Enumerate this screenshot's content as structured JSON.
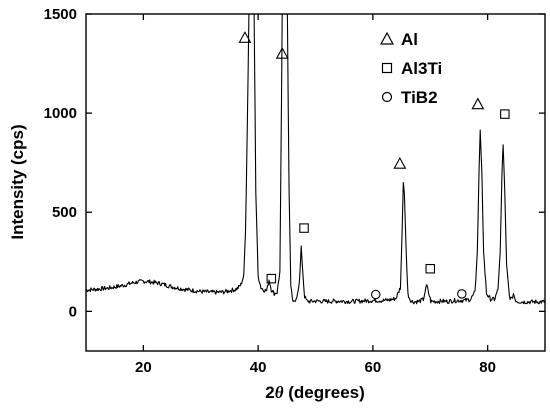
{
  "chart_data": {
    "type": "line",
    "xlabel_number": "2",
    "xlabel_symbol": "θ",
    "xlabel_rest": " (degrees)",
    "ylabel": "Intensity (cps)",
    "xlim": [
      10,
      90
    ],
    "ylim": [
      -200,
      1500
    ],
    "x_ticks": [
      20,
      40,
      60,
      80
    ],
    "y_ticks": [
      0,
      500,
      1000,
      1500
    ],
    "grid": false,
    "legend_position": "top-right",
    "legend": [
      {
        "marker": "triangle",
        "label": "Al"
      },
      {
        "marker": "square",
        "label": "Al3Ti"
      },
      {
        "marker": "circle",
        "label": "TiB2"
      }
    ],
    "series": [
      {
        "x": [
          10,
          12,
          14,
          16,
          17,
          18,
          19,
          20,
          21,
          22,
          23,
          24,
          25,
          26,
          27,
          28,
          29,
          30,
          31,
          32,
          33,
          34,
          35,
          36,
          36.5,
          37,
          37.5,
          37.8,
          38.1,
          38.4,
          38.6,
          39.0,
          39.3,
          39.6,
          40.0,
          40.5,
          41.0,
          41.5,
          41.9,
          42.3,
          42.8,
          43.3,
          43.8,
          44.2,
          44.5,
          44.8,
          45.1,
          45.4,
          45.7,
          46.1,
          46.5,
          46.9,
          47.2,
          47.5,
          47.8,
          48.1,
          48.5,
          49.0,
          50,
          52,
          54,
          56,
          58,
          60,
          62,
          63,
          64,
          64.8,
          65.1,
          65.3,
          65.5,
          65.8,
          66.1,
          66.5,
          67,
          68,
          68.8,
          69.1,
          69.4,
          69.7,
          70.1,
          71,
          72,
          73,
          74,
          75,
          76,
          77,
          77.8,
          78.2,
          78.5,
          78.7,
          79.0,
          79.3,
          79.8,
          80.5,
          81.2,
          81.8,
          82.2,
          82.5,
          82.7,
          83.0,
          83.3,
          83.8,
          84.2,
          84.5,
          84.8,
          85.2,
          86,
          87,
          88,
          89,
          90
        ],
        "y": [
          108,
          112,
          118,
          128,
          135,
          143,
          148,
          152,
          150,
          145,
          140,
          132,
          124,
          118,
          112,
          108,
          104,
          100,
          98,
          96,
          96,
          98,
          104,
          110,
          118,
          135,
          180,
          400,
          900,
          1500,
          1500,
          1500,
          1500,
          600,
          180,
          120,
          108,
          104,
          160,
          110,
          90,
          96,
          200,
          1500,
          1500,
          1500,
          1500,
          600,
          120,
          40,
          60,
          90,
          140,
          330,
          190,
          75,
          52,
          50,
          52,
          50,
          52,
          50,
          52,
          55,
          55,
          58,
          65,
          120,
          400,
          650,
          590,
          300,
          90,
          58,
          48,
          50,
          60,
          100,
          130,
          95,
          50,
          50,
          52,
          50,
          54,
          55,
          55,
          60,
          95,
          300,
          700,
          915,
          700,
          300,
          90,
          62,
          60,
          110,
          300,
          700,
          840,
          600,
          230,
          75,
          60,
          90,
          60,
          50,
          48,
          48,
          48,
          48,
          48
        ]
      }
    ],
    "peak_markers": [
      {
        "x": 37.7,
        "y": 1380,
        "marker": "triangle"
      },
      {
        "x": 44.2,
        "y": 1300,
        "marker": "triangle"
      },
      {
        "x": 64.7,
        "y": 745,
        "marker": "triangle"
      },
      {
        "x": 78.3,
        "y": 1045,
        "marker": "triangle"
      },
      {
        "x": 42.3,
        "y": 165,
        "marker": "square"
      },
      {
        "x": 48.0,
        "y": 420,
        "marker": "square"
      },
      {
        "x": 70.0,
        "y": 215,
        "marker": "square"
      },
      {
        "x": 83.0,
        "y": 995,
        "marker": "square"
      },
      {
        "x": 60.5,
        "y": 85,
        "marker": "circle"
      },
      {
        "x": 75.5,
        "y": 88,
        "marker": "circle"
      }
    ]
  }
}
